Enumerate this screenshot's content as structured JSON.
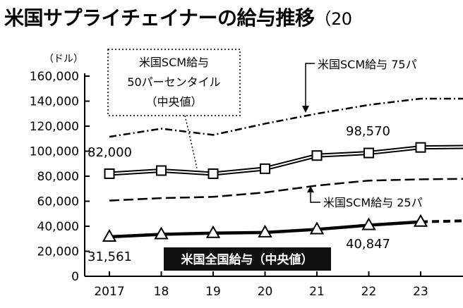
{
  "title": "米国サプライチェイナーの給与推移",
  "title_suffix": "（20",
  "chart_data": {
    "type": "line",
    "unit_label": "（ドル）",
    "x": [
      "2017",
      "18",
      "19",
      "20",
      "21",
      "22",
      "23"
    ],
    "ylim": [
      0,
      160000
    ],
    "yticks": [
      "0",
      "20,000",
      "40,000",
      "60,000",
      "80,000",
      "100,000",
      "120,000",
      "140,000",
      "160,000"
    ],
    "grid": false,
    "series": [
      {
        "name": "米国SCM給与 75パ",
        "style": "dash-dot",
        "x": [
          2017,
          2018,
          2019,
          2020,
          2021,
          2022,
          2023,
          2024
        ],
        "values": [
          111500,
          118000,
          113000,
          122000,
          130000,
          137000,
          142000,
          142000
        ]
      },
      {
        "name": "米国SCM給与 50パーセンタイル（中央値）",
        "style": "double-line-square",
        "x": [
          2017,
          2018,
          2019,
          2020,
          2021,
          2022,
          2023,
          2024
        ],
        "values": [
          82000,
          84500,
          82000,
          86000,
          96500,
          98570,
          103000,
          103500
        ]
      },
      {
        "name": "米国SCM給与 25パ",
        "style": "dashed",
        "x": [
          2017,
          2018,
          2019,
          2020,
          2021,
          2022,
          2023,
          2024
        ],
        "values": [
          60500,
          62500,
          63500,
          67000,
          72500,
          76500,
          77500,
          78000
        ]
      },
      {
        "name": "米国全国給与（中央値）",
        "style": "solid-triangle",
        "x": [
          2017,
          2018,
          2019,
          2020,
          2021,
          2022,
          2023
        ],
        "values": [
          31561,
          33500,
          34500,
          35000,
          37500,
          40847,
          43500
        ],
        "projection": {
          "x": [
            2023,
            2024
          ],
          "values": [
            43500,
            44500
          ]
        }
      }
    ],
    "data_labels": [
      {
        "text": "82,000"
      },
      {
        "text": "98,570"
      },
      {
        "text": "31,561"
      },
      {
        "text": "40,847"
      }
    ],
    "callouts": [
      {
        "lines": [
          "米国SCM給与",
          "50パーセンタイル",
          "（中央値）"
        ]
      },
      {
        "text": "米国SCM給与 75パ"
      },
      {
        "text": "米国SCM給与 25パ"
      },
      {
        "text": "米国全国給与（中央値）"
      }
    ],
    "colors": {
      "ink": "#000000",
      "box_fill": "#111111",
      "box_text": "#ffffff",
      "marker_fill": "#ffffff",
      "inner_line": "#ffffff"
    }
  }
}
